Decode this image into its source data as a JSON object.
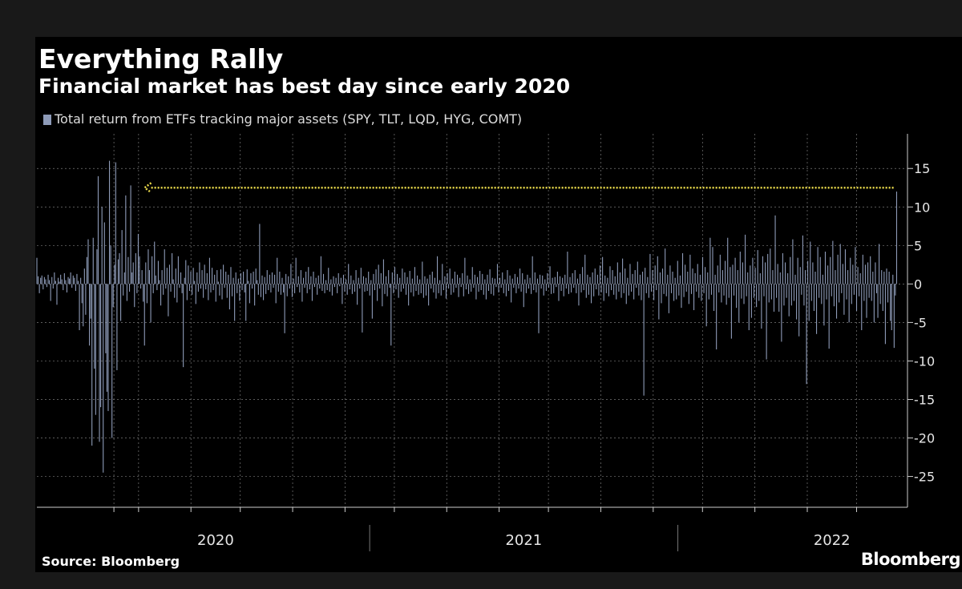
{
  "title": "Everything Rally",
  "subtitle": "Financial market has best day since early 2020",
  "source": "Source: Bloomberg",
  "brand": "Bloomberg",
  "colors": {
    "bar": "#8e9bb8",
    "arrow": "#e8d84a",
    "grid": "#7a7a7a",
    "text": "#ffffff",
    "background": "#000000"
  },
  "chart_data": {
    "type": "bar",
    "title": "Everything Rally",
    "subtitle": "Financial market has best day since early 2020",
    "legend": [
      "Total return from ETFs tracking major assets (SPY, TLT, LQD, HYG, COMT)"
    ],
    "legend_position": "top-left",
    "xlabel": "",
    "ylabel": "",
    "ylim": [
      -29,
      19.5
    ],
    "y_ticks": [
      15,
      10,
      5,
      0,
      -5,
      -10,
      -15,
      -20,
      -25
    ],
    "y_tick_labels": [
      "15",
      "10",
      "5",
      "0",
      "-5",
      "-10",
      "-15",
      "-20",
      "-25"
    ],
    "x_range": [
      2019.92,
      2022.74
    ],
    "x_labels": [
      {
        "label": "2020",
        "x": 2020.5
      },
      {
        "label": "2021",
        "x": 2021.5
      },
      {
        "label": "2022",
        "x": 2022.5
      }
    ],
    "year_boundaries": [
      2021.0,
      2022.0
    ],
    "minor_gridlines": [
      2020.17,
      2020.25,
      2020.42,
      2020.58,
      2020.75,
      2020.92,
      2021.08,
      2021.25,
      2021.42,
      2021.58,
      2021.75,
      2021.92,
      2022.08,
      2022.25,
      2022.42,
      2022.58
    ],
    "grid": true,
    "notes": "Daily bars ~ one per trading day; values estimated from gridlines. Dotted arrow points from the final bar (~12) back to the last comparable day in early 2020.",
    "annotation": {
      "type": "arrow",
      "from_x": 2022.7,
      "to_x": 2020.27,
      "y": 12.5
    },
    "series": [
      {
        "name": "Total return from ETFs tracking major assets (SPY, TLT, LQD, HYG, COMT)",
        "start": 2019.92,
        "end": 2022.71,
        "values": [
          3.4,
          1.0,
          -1.2,
          0.8,
          1.1,
          -0.7,
          0.9,
          0.6,
          -0.4,
          1.2,
          0.5,
          -2.2,
          0.9,
          -0.6,
          1.5,
          0.4,
          -2.7,
          0.8,
          0.3,
          1.2,
          0.6,
          -0.8,
          1.4,
          0.5,
          -1.1,
          0.9,
          0.7,
          1.5,
          -0.5,
          1.1,
          0.8,
          -0.9,
          1.3,
          0.4,
          -6.0,
          0.8,
          -2.5,
          -5.5,
          2.0,
          -4.0,
          3.5,
          5.8,
          -8.0,
          -4.5,
          -21.0,
          6.0,
          -11.0,
          -17.0,
          4.5,
          14.0,
          -20.5,
          -16.0,
          10.0,
          -24.5,
          8.0,
          -9.0,
          -14.0,
          -16.5,
          16.0,
          5.0,
          -20.0,
          -3.0,
          2.5,
          15.8,
          -11.2,
          3.2,
          4.0,
          -4.8,
          7.0,
          -1.5,
          1.5,
          11.5,
          -2.2,
          3.5,
          -1.0,
          12.8,
          1.5,
          2.8,
          -3.0,
          4.0,
          -1.2,
          6.5,
          3.6,
          -0.6,
          1.8,
          -2.3,
          -8.0,
          2.8,
          -2.5,
          4.5,
          1.8,
          -5.0,
          3.6,
          -1.2,
          5.5,
          1.1,
          -0.8,
          3.0,
          0.5,
          -2.8,
          1.8,
          -1.4,
          4.5,
          -0.6,
          2.1,
          -4.2,
          2.5,
          -1.0,
          4.0,
          0.6,
          -1.8,
          2.0,
          -2.4,
          3.6,
          -0.5,
          1.5,
          -1.2,
          -10.8,
          0.8,
          3.1,
          -2.1,
          2.4,
          -0.9,
          1.6,
          -1.4,
          2.1,
          0.4,
          -2.6,
          1.5,
          -1.0,
          2.8,
          -0.6,
          1.8,
          -1.8,
          2.5,
          -0.7,
          1.4,
          -2.1,
          3.4,
          -1.1,
          2.1,
          -0.8,
          1.2,
          -2.3,
          1.8,
          0.3,
          -1.5,
          1.9,
          -2.0,
          2.5,
          -0.5,
          1.6,
          -1.8,
          1.2,
          -3.3,
          2.2,
          -1.6,
          0.8,
          -4.8,
          1.5,
          -1.2,
          0.7,
          -2.2,
          1.4,
          -0.8,
          1.6,
          -1.1,
          -4.8,
          1.9,
          0.4,
          -2.5,
          1.4,
          -0.6,
          1.6,
          -2.8,
          2.0,
          0.5,
          -1.4,
          7.8,
          -1.7,
          1.1,
          -2.1,
          0.9,
          -1.3,
          1.8,
          -0.8,
          1.2,
          -1.1,
          1.5,
          -0.5,
          1.2,
          -2.5,
          3.4,
          -1.0,
          1.6,
          -1.4,
          0.8,
          -1.1,
          -6.4,
          1.3,
          -1.6,
          1.0,
          -0.6,
          2.6,
          -1.7,
          0.7,
          -1.2,
          3.4,
          -0.4,
          1.0,
          -1.1,
          1.8,
          -2.3,
          0.8,
          -0.5,
          1.6,
          -1.2,
          2.2,
          -0.7,
          1.0,
          -2.2,
          1.6,
          -0.4,
          0.8,
          -1.4,
          1.1,
          -0.6,
          3.6,
          -0.9,
          1.3,
          -1.2,
          0.5,
          -0.8,
          2.1,
          -1.0,
          0.6,
          -1.5,
          1.0,
          -0.4,
          0.8,
          -1.2,
          1.4,
          -0.3,
          0.8,
          -2.6,
          1.2,
          -1.0,
          0.6,
          -1.4,
          2.6,
          -0.7,
          1.1,
          -1.3,
          0.5,
          -1.0,
          1.8,
          -2.7,
          0.8,
          -0.6,
          2.1,
          -6.3,
          1.0,
          -1.0,
          0.8,
          -0.9,
          1.6,
          -1.5,
          0.5,
          -4.5,
          1.3,
          -0.8,
          1.9,
          -2.2,
          2.5,
          -0.6,
          1.4,
          -2.9,
          3.2,
          -1.3,
          1.0,
          -1.6,
          1.8,
          -0.5,
          -8.0,
          1.5,
          -1.2,
          2.2,
          -0.7,
          1.3,
          -1.8,
          0.8,
          -1.0,
          2.0,
          -0.6,
          1.5,
          -1.4,
          0.9,
          -2.8,
          1.7,
          -1.1,
          0.7,
          -1.6,
          2.2,
          -0.9,
          1.1,
          -1.4,
          0.6,
          -1.2,
          2.9,
          -1.8,
          1.0,
          -1.5,
          0.7,
          -2.8,
          1.2,
          -0.6,
          1.6,
          -1.1,
          0.8,
          -1.9,
          3.6,
          -1.2,
          0.5,
          -1.5,
          2.6,
          -0.8,
          1.0,
          -1.9,
          1.4,
          -0.6,
          2.0,
          -1.4,
          0.7,
          -1.1,
          1.6,
          -0.5,
          1.2,
          -1.7,
          0.8,
          -0.4,
          1.4,
          -1.6,
          3.4,
          -0.7,
          1.1,
          -1.3,
          0.6,
          -1.0,
          2.2,
          -0.5,
          1.2,
          -2.0,
          0.9,
          -1.0,
          1.7,
          -0.8,
          1.3,
          -1.4,
          0.6,
          -2.0,
          1.2,
          -0.9,
          1.9,
          -1.3,
          0.8,
          -1.5,
          0.7,
          -0.4,
          2.6,
          -1.1,
          0.8,
          -0.5,
          1.5,
          -1.2,
          0.6,
          -1.6,
          1.8,
          -0.9,
          1.1,
          -2.4,
          0.7,
          -0.5,
          1.3,
          -1.2,
          0.9,
          -0.6,
          2.0,
          -1.0,
          1.4,
          -3.0,
          0.6,
          -1.2,
          1.2,
          -0.6,
          0.8,
          -1.3,
          3.6,
          -0.8,
          1.5,
          -1.1,
          0.7,
          -6.4,
          1.2,
          -0.6,
          1.1,
          -1.5,
          0.6,
          -0.9,
          1.4,
          -0.5,
          2.3,
          -1.3,
          0.8,
          -1.2,
          0.9,
          -0.4,
          1.6,
          -2.2,
          1.0,
          -0.9,
          0.8,
          -1.6,
          1.2,
          -0.6,
          4.2,
          -1.3,
          0.9,
          -1.1,
          1.4,
          -0.5,
          1.8,
          -1.2,
          0.7,
          -2.8,
          1.3,
          -1.1,
          2.2,
          -0.8,
          3.8,
          -1.8,
          1.2,
          -1.4,
          0.9,
          -2.5,
          1.5,
          -1.6,
          2.0,
          -0.7,
          1.2,
          -1.5,
          2.4,
          -1.1,
          3.5,
          -2.2,
          1.1,
          -1.2,
          0.8,
          -1.6,
          2.3,
          -0.8,
          1.8,
          -1.4,
          1.0,
          -2.0,
          2.8,
          -1.0,
          1.5,
          -1.8,
          3.3,
          -1.2,
          2.0,
          -2.6,
          0.8,
          -1.5,
          2.6,
          -1.0,
          1.3,
          -2.0,
          1.8,
          -0.5,
          2.9,
          -1.5,
          1.2,
          -2.1,
          1.6,
          -14.5,
          2.1,
          -1.2,
          0.9,
          -1.8,
          3.9,
          -1.0,
          1.8,
          -2.1,
          2.4,
          -0.8,
          3.6,
          -4.6,
          1.5,
          -2.5,
          2.0,
          -1.3,
          4.6,
          -1.6,
          1.2,
          -3.8,
          2.4,
          -1.2,
          1.6,
          -2.2,
          0.8,
          -2.0,
          3.0,
          -1.5,
          1.1,
          -3.1,
          4.0,
          -1.7,
          2.5,
          -1.0,
          1.6,
          -2.6,
          3.8,
          -1.3,
          2.0,
          -3.4,
          1.4,
          -1.0,
          2.6,
          -1.8,
          1.2,
          -2.2,
          3.5,
          -1.2,
          2.2,
          -5.5,
          1.5,
          -2.0,
          6.0,
          -1.4,
          4.8,
          -3.5,
          1.2,
          -8.5,
          2.4,
          -1.1,
          3.8,
          -2.4,
          1.8,
          -1.5,
          3.0,
          -2.7,
          6.0,
          -1.8,
          2.2,
          -7.1,
          2.5,
          -1.5,
          3.4,
          -3.1,
          1.8,
          -5.0,
          4.2,
          -1.9,
          2.8,
          -2.6,
          6.4,
          -1.6,
          1.5,
          -6.0,
          2.4,
          -4.4,
          3.4,
          -1.8,
          2.1,
          -3.0,
          4.4,
          -2.2,
          1.4,
          -5.8,
          3.6,
          -1.6,
          2.8,
          -9.8,
          3.9,
          -2.4,
          4.6,
          -2.0,
          1.8,
          -3.6,
          8.9,
          -1.8,
          2.6,
          -3.6,
          1.5,
          -7.5,
          4.0,
          -2.8,
          2.8,
          -1.8,
          1.4,
          -4.2,
          3.5,
          -2.8,
          5.8,
          -2.2,
          1.2,
          -4.6,
          3.4,
          -6.8,
          2.2,
          -1.4,
          6.3,
          -2.8,
          1.8,
          -13.0,
          3.0,
          -4.8,
          5.5,
          -2.2,
          2.8,
          -3.5,
          1.6,
          -6.5,
          4.8,
          -1.8,
          3.5,
          -2.6,
          1.2,
          -5.4,
          4.2,
          -2.0,
          2.4,
          -8.4,
          3.5,
          -1.6,
          5.6,
          -2.9,
          1.8,
          -4.5,
          3.8,
          -2.4,
          5.2,
          -1.2,
          2.6,
          -4.0,
          4.5,
          -2.0,
          1.8,
          -5.0,
          3.4,
          -2.6,
          2.5,
          -1.4,
          4.8,
          -3.5,
          2.2,
          -1.6,
          1.4,
          -6.0,
          3.8,
          -2.2,
          2.5,
          -4.4,
          2.8,
          -1.8,
          3.6,
          -2.2,
          1.6,
          -5.0,
          2.8,
          -1.2,
          -4.4,
          5.2,
          -2.6,
          1.8,
          -3.5,
          1.6,
          -7.8,
          2.0,
          -2.4,
          1.6,
          -4.8,
          -6.0,
          1.2,
          -8.3,
          -1.5,
          12.0
        ]
      }
    ]
  }
}
